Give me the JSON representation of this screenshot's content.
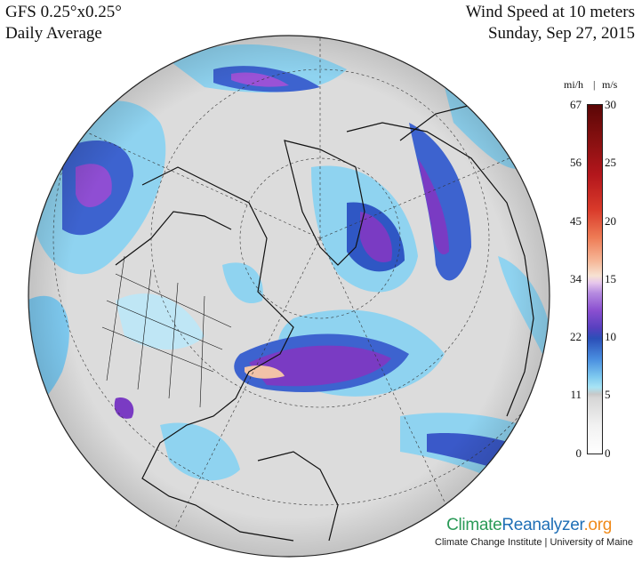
{
  "header": {
    "model": "GFS 0.25°x0.25°",
    "period": "Daily Average",
    "variable": "Wind Speed at 10 meters",
    "date": "Sunday, Sep 27, 2015"
  },
  "colorbar": {
    "unit_left": "mi/h",
    "separator": "|",
    "unit_right": "m/s",
    "ticks_mph": [
      "67",
      "56",
      "45",
      "34",
      "22",
      "11",
      "0"
    ],
    "ticks_ms": [
      "30",
      "25",
      "20",
      "15",
      "10",
      "5",
      "0"
    ]
  },
  "credits": {
    "logo_climate": "Climate",
    "logo_reanalyzer": "Reanalyzer",
    "logo_org": ".org",
    "subtitle": "Climate Change Institute | University of Maine"
  },
  "colors": {
    "calm": "#d9d9d9",
    "light_blue": "#8fd3f0",
    "blue": "#2f57c4",
    "purple": "#7a3bc3",
    "land_line": "#111111"
  }
}
